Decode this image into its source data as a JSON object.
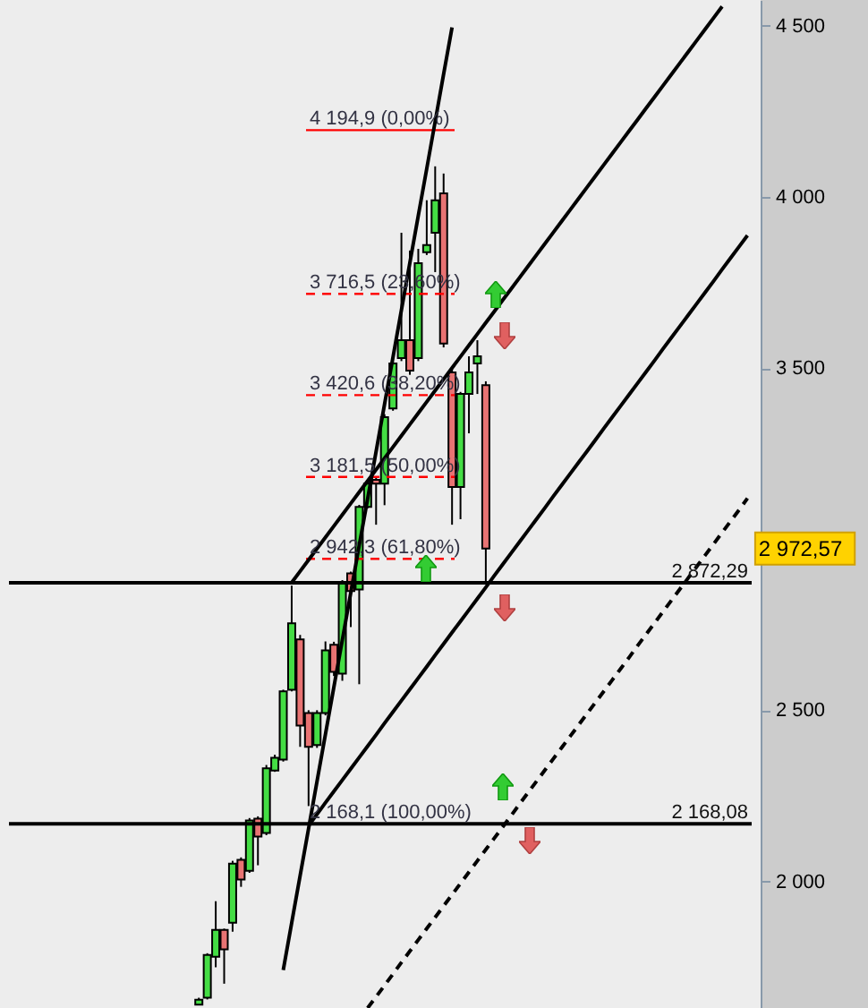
{
  "chart_data": {
    "type": "candlestick",
    "categories": [
      null,
      null,
      null,
      null,
      null,
      null,
      null,
      null,
      null,
      null,
      null,
      null,
      null,
      null,
      null,
      null,
      null,
      null,
      null,
      null,
      null,
      null,
      null,
      null,
      null,
      null,
      null,
      null,
      null,
      null,
      null,
      null,
      null,
      null,
      null,
      null,
      null,
      null,
      null,
      null,
      null,
      null,
      null,
      null,
      null,
      null,
      null,
      null,
      null,
      null,
      null,
      null,
      null,
      null,
      null,
      null,
      null,
      null,
      null,
      null,
      null,
      null,
      null,
      null,
      null,
      null,
      null,
      null,
      null,
      null,
      null,
      null,
      null,
      null,
      null,
      null,
      null,
      null,
      null,
      null,
      null,
      null,
      null,
      null,
      null,
      null,
      null,
      null
    ],
    "ohlc": [
      null,
      null,
      null,
      null,
      null,
      null,
      null,
      null,
      null,
      null,
      null,
      null,
      null,
      null,
      null,
      null,
      null,
      null,
      null,
      null,
      null,
      null,
      [
        1640,
        1660,
        1640,
        1654
      ],
      [
        1660,
        1790,
        1655,
        1785
      ],
      [
        1780,
        1942,
        1749,
        1858
      ],
      [
        1858,
        1862,
        1701,
        1801
      ],
      [
        1879,
        2060,
        1853,
        2052
      ],
      [
        2063,
        2070,
        1984,
        2005
      ],
      [
        2031,
        2185,
        2025,
        2178
      ],
      [
        2183,
        2190,
        2047,
        2131
      ],
      [
        2141,
        2340,
        2135,
        2330
      ],
      [
        2324,
        2370,
        2320,
        2361
      ],
      [
        2356,
        2560,
        2350,
        2555
      ],
      [
        2560,
        2864,
        2555,
        2754
      ],
      [
        2707,
        2720,
        2393,
        2455
      ],
      [
        2492,
        2500,
        2220,
        2393
      ],
      [
        2398,
        2500,
        2390,
        2492
      ],
      [
        2492,
        2701,
        2485,
        2675
      ],
      [
        2691,
        2700,
        2600,
        2612
      ],
      [
        2607,
        2880,
        2586,
        2874
      ],
      [
        2900,
        2905,
        2743,
        2848
      ],
      [
        2853,
        3100,
        2576,
        3094
      ],
      [
        3094,
        3170,
        3090,
        3162
      ],
      [
        3173,
        3180,
        3042,
        3162
      ],
      [
        3162,
        3365,
        3099,
        3356
      ],
      [
        3382,
        3520,
        3375,
        3513
      ],
      [
        3529,
        3895,
        3520,
        3581
      ],
      [
        3581,
        3843,
        3480,
        3492
      ],
      [
        3529,
        3848,
        3520,
        3806
      ],
      [
        3838,
        3990,
        3830,
        3859
      ],
      [
        3895,
        4089,
        3780,
        3990
      ],
      [
        4010,
        4068,
        3560,
        3571
      ],
      [
        3487,
        3500,
        3042,
        3152
      ],
      [
        3152,
        3430,
        3058,
        3424
      ],
      [
        3424,
        3534,
        3309,
        3487
      ],
      [
        3513,
        3581,
        3424,
        3534
      ],
      [
        3450,
        3461,
        2872.29,
        2972.57
      ],
      null,
      null,
      null,
      null,
      null,
      null,
      null,
      null,
      null,
      null,
      null,
      null,
      null,
      null,
      null,
      null,
      null,
      null,
      null,
      null,
      null,
      null,
      null,
      null,
      null,
      null,
      null,
      null,
      null,
      null,
      null
    ],
    "colors": [
      null,
      null,
      null,
      null,
      null,
      null,
      null,
      null,
      null,
      null,
      null,
      null,
      null,
      null,
      null,
      null,
      null,
      null,
      null,
      null,
      null,
      null,
      "#44dd44",
      "#44dd44",
      "#44dd44",
      "#e87373",
      "#44dd44",
      "#e87373",
      "#44dd44",
      "#e87373",
      "#44dd44",
      "#44dd44",
      "#44dd44",
      "#44dd44",
      "#e87373",
      "#e87373",
      "#44dd44",
      "#44dd44",
      "#e87373",
      "#44dd44",
      "#e87373",
      "#44dd44",
      "#44dd44",
      "#e87373",
      "#44dd44",
      "#44dd44",
      "#44dd44",
      "#e87373",
      "#44dd44",
      "#44dd44",
      "#44dd44",
      "#e87373",
      "#e87373",
      "#44dd44",
      "#44dd44",
      "#44dd44",
      "#e87373",
      null,
      null,
      null,
      null,
      null,
      null,
      null,
      null,
      null,
      null,
      null,
      null,
      null,
      null,
      null,
      null,
      null,
      null,
      null,
      null,
      null,
      null,
      null,
      null,
      null,
      null,
      null,
      null,
      null,
      null,
      null
    ],
    "series": [
      {
        "type": "line",
        "color": "#000000",
        "values": [
          null,
          null,
          null,
          null,
          null,
          null,
          null,
          null,
          null,
          null,
          null,
          null,
          null,
          null,
          null,
          null,
          null,
          null,
          null,
          null,
          null,
          null,
          null,
          null,
          null,
          null,
          null,
          null,
          null,
          null,
          null,
          null,
          1741,
          1879,
          2017,
          2154,
          2292,
          2430,
          2568,
          2705,
          2843,
          2981,
          3118,
          3256,
          3394,
          3531,
          3669,
          3807,
          3945,
          4082,
          4220,
          4358,
          4495,
          null,
          null,
          null,
          null,
          null,
          null,
          null,
          null,
          null,
          null,
          null,
          null,
          null,
          null,
          null,
          null,
          null,
          null,
          null,
          null,
          null,
          null,
          null,
          null,
          null,
          null,
          null,
          null,
          null,
          null,
          null,
          null,
          null,
          null,
          null
        ]
      },
      {
        "type": "line",
        "color": "#000000",
        "values": [
          null,
          null,
          null,
          null,
          null,
          null,
          null,
          null,
          null,
          null,
          null,
          null,
          null,
          null,
          null,
          null,
          null,
          null,
          null,
          null,
          null,
          null,
          null,
          null,
          null,
          null,
          null,
          null,
          null,
          null,
          null,
          null,
          null,
          2873,
          2906,
          2939,
          2972,
          3005,
          3038,
          3071,
          3104,
          3137,
          3170,
          3203,
          3236,
          3269,
          3302,
          3335,
          3368,
          3401,
          3434,
          3467,
          3500,
          3533,
          3566,
          3599,
          3632,
          3665,
          3698,
          3731,
          3764,
          3797,
          3830,
          3863,
          3896,
          3929,
          3962,
          3995,
          4028,
          4061,
          4094,
          4127,
          4160,
          4193,
          4226,
          4259,
          4292,
          4325,
          4358,
          4391,
          4424,
          4457,
          4490,
          4523,
          4556,
          null,
          null,
          null
        ]
      },
      {
        "type": "line",
        "color": "#000000",
        "values": [
          null,
          null,
          null,
          null,
          null,
          null,
          null,
          null,
          null,
          null,
          null,
          null,
          null,
          null,
          null,
          null,
          null,
          null,
          null,
          null,
          null,
          null,
          null,
          null,
          null,
          null,
          null,
          null,
          null,
          null,
          null,
          null,
          null,
          null,
          null,
          2163,
          2196,
          2230,
          2263,
          2296,
          2329,
          2362,
          2395,
          2428,
          2462,
          2495,
          2528,
          2561,
          2594,
          2627,
          2661,
          2694,
          2727,
          2760,
          2793,
          2826,
          2859,
          2893,
          2926,
          2959,
          2992,
          3025,
          3058,
          3091,
          3125,
          3158,
          3191,
          3224,
          3257,
          3290,
          3324,
          3357,
          3390,
          3423,
          3456,
          3489,
          3522,
          3556,
          3589,
          3622,
          3655,
          3688,
          3721,
          3754,
          3788,
          3821,
          3854,
          3887
        ]
      },
      {
        "type": "line",
        "color": "#000000",
        "line_style": "dashed",
        "values": [
          null,
          null,
          null,
          null,
          null,
          null,
          null,
          null,
          null,
          null,
          null,
          null,
          null,
          null,
          null,
          null,
          null,
          null,
          null,
          null,
          null,
          null,
          null,
          null,
          null,
          null,
          null,
          null,
          null,
          null,
          null,
          null,
          null,
          null,
          null,
          null,
          null,
          null,
          null,
          null,
          null,
          null,
          1630,
          1663,
          1696,
          1729,
          1763,
          1796,
          1829,
          1862,
          1895,
          1928,
          1961,
          1994,
          2027,
          2060,
          2093,
          2126,
          2159,
          2192,
          2226,
          2259,
          2292,
          2325,
          2358,
          2391,
          2424,
          2457,
          2490,
          2523,
          2556,
          2589,
          2622,
          2655,
          2689,
          2722,
          2755,
          2788,
          2821,
          2854,
          2887,
          2920,
          2953,
          2986,
          3019,
          3052,
          3085,
          3119
        ]
      }
    ],
    "ylim": [
      1630,
      4575
    ],
    "yticks": [
      {
        "value": 2000,
        "label": "2 000"
      },
      {
        "value": 2500,
        "label": "2 500"
      },
      {
        "value": 3000,
        "label": null
      },
      {
        "value": 3500,
        "label": "3 500"
      },
      {
        "value": 4000,
        "label": "4 000"
      },
      {
        "value": 4500,
        "label": "4 500"
      }
    ],
    "tick_labels": "y",
    "ref_lines": [
      {
        "axis": "y",
        "value": 2872.29,
        "label": "2 872,29"
      },
      {
        "axis": "y",
        "value": 2168.08,
        "label": "2 168,08"
      },
      {
        "axis": "y",
        "value": 4194.9,
        "label": "4 194,9 (0,00%)",
        "color": "#ff0000",
        "line_style": "solid"
      },
      {
        "axis": "y",
        "value": 3716.5,
        "label": "3 716,5 (23,60%)",
        "color": "#ff0000",
        "line_style": "dashed"
      },
      {
        "axis": "y",
        "value": 3420.6,
        "label": "3 420,6 (38,20%)",
        "color": "#ff0000",
        "line_style": "dashed"
      },
      {
        "axis": "y",
        "value": 3181.5,
        "label": "3 181,5 (50,00%)",
        "color": "#ff0000",
        "line_style": "dashed"
      },
      {
        "axis": "y",
        "value": 2942.3,
        "label": "2 942,3 (61,80%)",
        "color": "#ff0000",
        "line_style": "dashed"
      }
    ],
    "annotations": [
      "2 972,57",
      {
        "text": "2 168,1 (100,00%)",
        "y": 2168.1
      }
    ]
  }
}
